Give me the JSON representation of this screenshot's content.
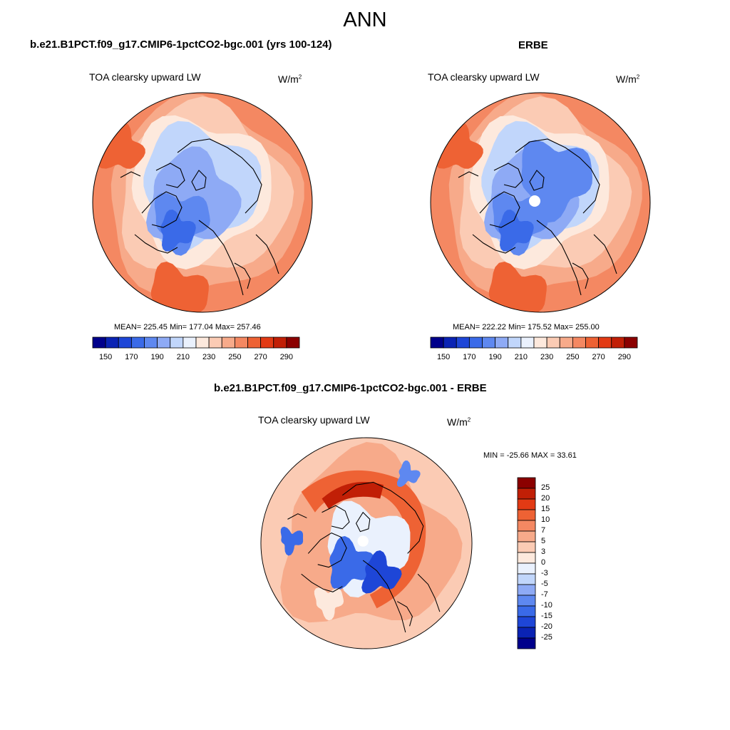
{
  "figure": {
    "season": "ANN",
    "colors": {
      "seq": [
        "#00008b",
        "#0a23b4",
        "#1e46d7",
        "#3a6ae8",
        "#5e88f0",
        "#8eaaf5",
        "#c1d6fb",
        "#eaf1fd",
        "#fde9dd",
        "#fbcbb4",
        "#f7aa8a",
        "#f48862",
        "#ee6234",
        "#e23a14",
        "#c11f06",
        "#8b0000"
      ],
      "diff": [
        "#00008b",
        "#0a23b4",
        "#1e46d7",
        "#3a6ae8",
        "#5e88f0",
        "#8eaaf5",
        "#c1d6fb",
        "#eaf1fd",
        "#fde9dd",
        "#fbcbb4",
        "#f7aa8a",
        "#f48862",
        "#ee6234",
        "#e23a14",
        "#c11f06",
        "#8b0000"
      ]
    }
  },
  "panels": [
    {
      "id": "model",
      "case_title": "b.e21.B1PCT.f09_g17.CMIP6-1pctCO2-bgc.001 (yrs 100-124)",
      "variable": "TOA clearsky upward LW",
      "units_base": "W/m",
      "units_exp": "2",
      "stats": "MEAN= 225.45  Min= 177.04  Max= 257.46",
      "colorbar_labels": [
        "150",
        "170",
        "190",
        "210",
        "230",
        "250",
        "270",
        "290"
      ]
    },
    {
      "id": "obs",
      "case_title": "ERBE",
      "variable": "TOA clearsky upward LW",
      "units_base": "W/m",
      "units_exp": "2",
      "stats": "MEAN= 222.22  Min= 175.52  Max= 255.00",
      "colorbar_labels": [
        "150",
        "170",
        "190",
        "210",
        "230",
        "250",
        "270",
        "290"
      ]
    },
    {
      "id": "diff",
      "case_title": "b.e21.B1PCT.f09_g17.CMIP6-1pctCO2-bgc.001 - ERBE",
      "variable": "TOA clearsky upward LW",
      "units_base": "W/m",
      "units_exp": "2",
      "stats": "MIN = -25.66 MAX =  33.61",
      "colorbar_labels": [
        "25",
        "20",
        "15",
        "10",
        "7",
        "5",
        "3",
        "0",
        "-3",
        "-5",
        "-7",
        "-10",
        "-15",
        "-20",
        "-25"
      ]
    }
  ]
}
